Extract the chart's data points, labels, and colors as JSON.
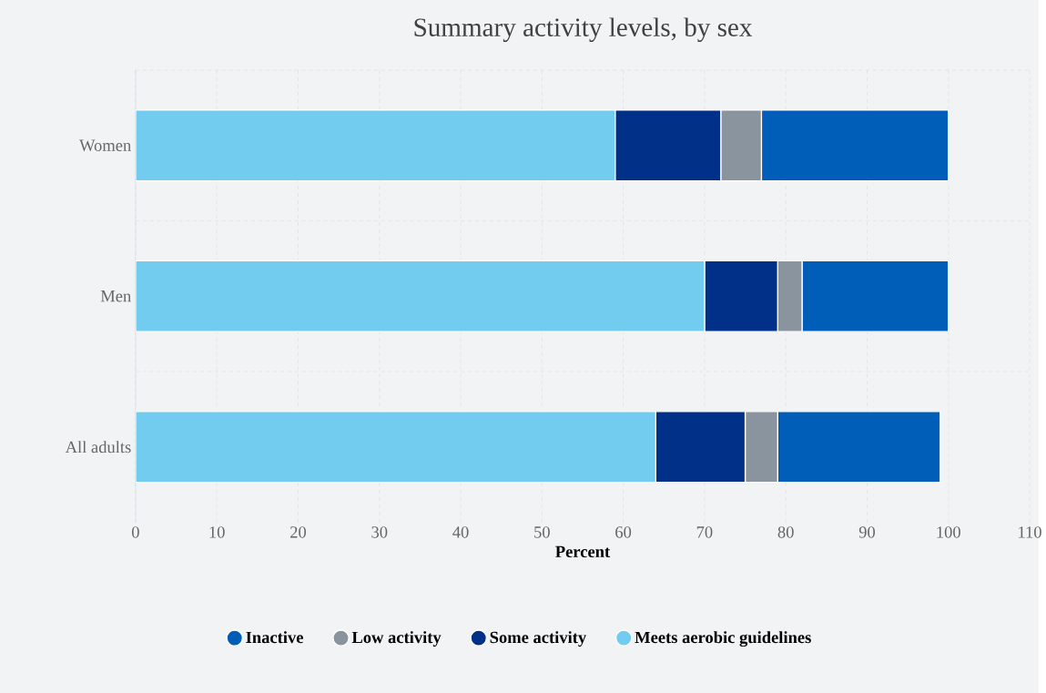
{
  "chart_data": {
    "type": "bar",
    "orientation": "horizontal",
    "stacked": true,
    "title": "Summary activity levels, by sex",
    "xlabel": "Percent",
    "categories": [
      "Women",
      "Men",
      "All adults"
    ],
    "series": [
      {
        "name": "Meets aerobic guidelines",
        "color": "#71ccef",
        "values": [
          59,
          70,
          64
        ]
      },
      {
        "name": "Some activity",
        "color": "#003087",
        "values": [
          13,
          9,
          11
        ]
      },
      {
        "name": "Low activity",
        "color": "#8a949e",
        "values": [
          5,
          3,
          4
        ]
      },
      {
        "name": "Inactive",
        "color": "#005eb8",
        "values": [
          23,
          18,
          20
        ]
      }
    ],
    "xlim": [
      0,
      110
    ],
    "xticks": [
      0,
      10,
      20,
      30,
      40,
      50,
      60,
      70,
      80,
      90,
      100,
      110
    ],
    "grid": true,
    "legend": "bottom"
  }
}
